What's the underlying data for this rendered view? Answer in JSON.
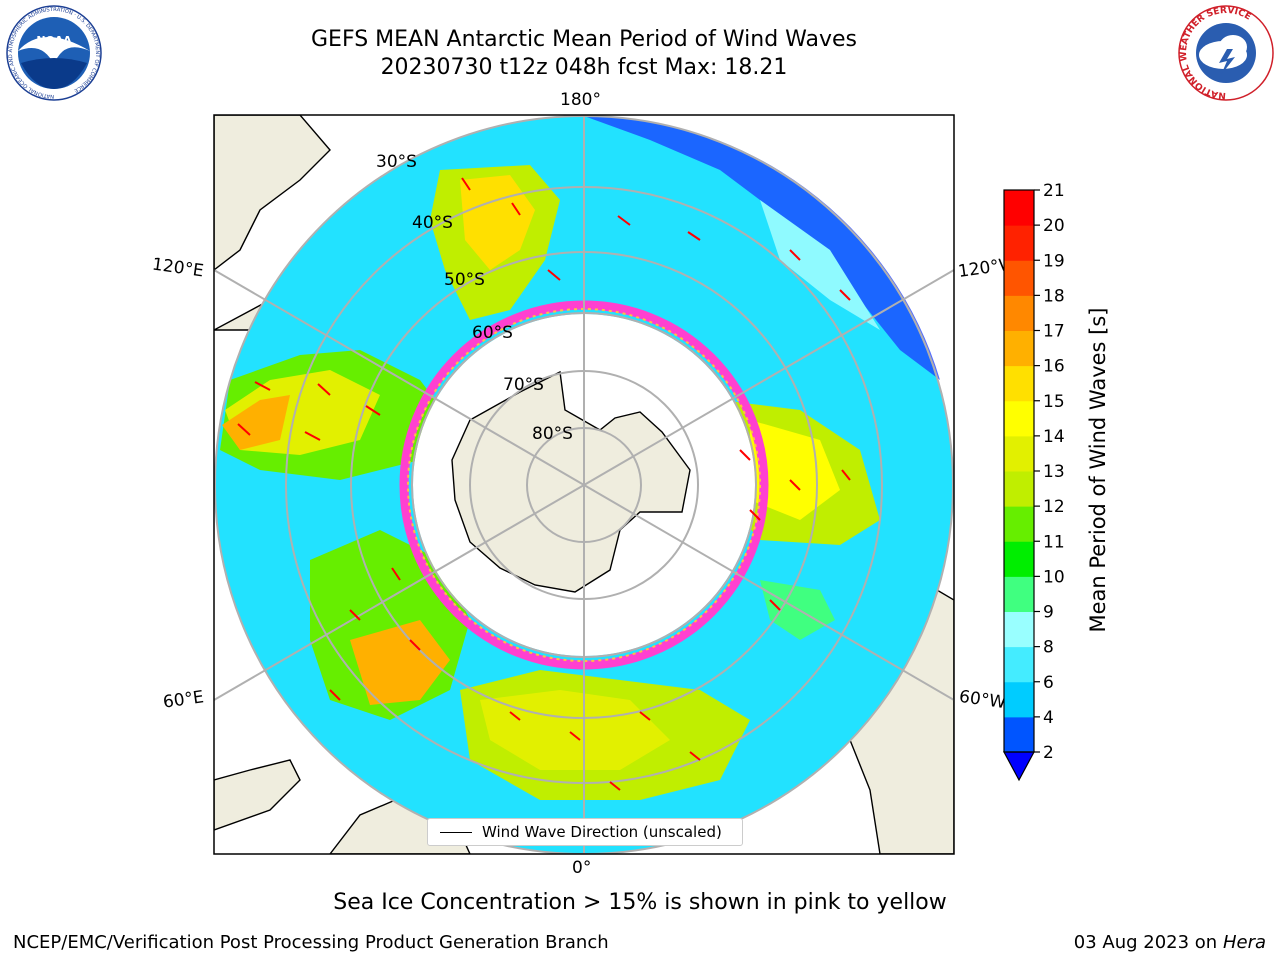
{
  "header": {
    "title_line1": "GEFS MEAN Antarctic Mean Period of Wind Waves",
    "title_line2": "20230730 t12z 048h fcst   Max: 18.21"
  },
  "logos": {
    "left_text": "NOAA",
    "left_ring_text": "NATIONAL OCEANIC AND ATMOSPHERIC ADMINISTRATION · U.S. DEPARTMENT OF COMMERCE",
    "right_ring_text": "NATIONAL WEATHER SERVICE"
  },
  "map": {
    "longitude_labels": {
      "top": "180°",
      "bottom": "0°",
      "upper_left": "120°E",
      "upper_right": "120°W",
      "lower_left": "60°E",
      "lower_right": "60°W"
    },
    "latitude_labels": [
      "30°S",
      "40°S",
      "50°S",
      "60°S",
      "70°S",
      "80°S"
    ],
    "legend": "Wind Wave Direction (unscaled)"
  },
  "colorbar": {
    "label": "Mean Period of Wind Waves [s]",
    "ticks": [
      "2",
      "4",
      "6",
      "8",
      "9",
      "10",
      "11",
      "12",
      "13",
      "14",
      "15",
      "16",
      "17",
      "18",
      "19",
      "20",
      "21"
    ],
    "colors": [
      "#0055ff",
      "#00ccff",
      "#44ecff",
      "#99ffff",
      "#40ff80",
      "#00ee00",
      "#66ee00",
      "#c0ee00",
      "#e2f000",
      "#ffff00",
      "#ffe000",
      "#ffb000",
      "#ff8800",
      "#ff5500",
      "#ff2200",
      "#ff0000"
    ],
    "extend_color": "#0000ff"
  },
  "footer": {
    "subtitle": "Sea Ice Concentration > 15% is shown in pink to yellow",
    "left": "NCEP/EMC/Verification Post Processing Product Generation Branch",
    "right_date": "03 Aug 2023 on",
    "right_host": "Hera"
  }
}
